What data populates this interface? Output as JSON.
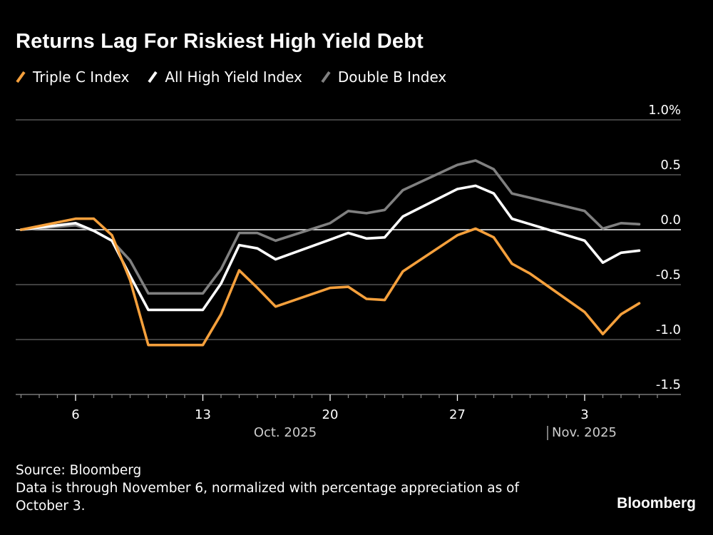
{
  "title": "Returns Lag For Riskiest High Yield Debt",
  "legend": [
    {
      "label": "Triple C Index",
      "color": "#f5a03c"
    },
    {
      "label": "All High Yield Index",
      "color": "#ffffff"
    },
    {
      "label": "Double B Index",
      "color": "#808080"
    }
  ],
  "footer": {
    "source": "Source: Bloomberg",
    "note": "Data is through November 6, normalized with percentage appreciation as of October 3."
  },
  "brand": "Bloomberg",
  "chart_data": {
    "type": "line",
    "title": "Returns Lag For Riskiest High Yield Debt",
    "xlabel": "",
    "ylabel": "",
    "y_unit": "%",
    "ylim": [
      -1.5,
      1.0
    ],
    "yticks": [
      1.0,
      0.5,
      0.0,
      -0.5,
      -1.0,
      -1.5
    ],
    "ytick_labels": [
      "1.0%",
      "0.5",
      "0.0",
      "-0.5",
      "-1.0",
      "-1.5"
    ],
    "xlim": [
      "2025-10-02",
      "2025-11-08"
    ],
    "xtick_labels": [
      {
        "date": "2025-10-06",
        "label": "6"
      },
      {
        "date": "2025-10-13",
        "label": "13"
      },
      {
        "date": "2025-10-20",
        "label": "20"
      },
      {
        "date": "2025-10-27",
        "label": "27"
      },
      {
        "date": "2025-11-03",
        "label": "3"
      }
    ],
    "month_labels": [
      {
        "label": "Oct. 2025",
        "date": "2025-10-16"
      },
      {
        "label": "Nov. 2025",
        "date": "2025-11-01"
      }
    ],
    "grid": true,
    "legend_position": "top-left",
    "x": [
      "2025-10-03",
      "2025-10-06",
      "2025-10-07",
      "2025-10-08",
      "2025-10-09",
      "2025-10-10",
      "2025-10-13",
      "2025-10-14",
      "2025-10-15",
      "2025-10-16",
      "2025-10-17",
      "2025-10-20",
      "2025-10-21",
      "2025-10-22",
      "2025-10-23",
      "2025-10-24",
      "2025-10-27",
      "2025-10-28",
      "2025-10-29",
      "2025-10-30",
      "2025-10-31",
      "2025-11-03",
      "2025-11-04",
      "2025-11-05",
      "2025-11-06"
    ],
    "series": [
      {
        "name": "Double B Index",
        "color": "#808080",
        "values": [
          0,
          0.04,
          -0.01,
          -0.1,
          -0.28,
          -0.58,
          -0.58,
          -0.36,
          -0.03,
          -0.03,
          -0.1,
          0.06,
          0.17,
          0.15,
          0.18,
          0.36,
          0.59,
          0.63,
          0.55,
          0.33,
          0.29,
          0.17,
          0.01,
          0.06,
          0.05
        ]
      },
      {
        "name": "All High Yield Index",
        "color": "#ffffff",
        "values": [
          0,
          0.06,
          -0.01,
          -0.1,
          -0.42,
          -0.73,
          -0.73,
          -0.49,
          -0.14,
          -0.17,
          -0.27,
          -0.09,
          -0.03,
          -0.08,
          -0.07,
          0.12,
          0.37,
          0.4,
          0.33,
          0.1,
          0.05,
          -0.1,
          -0.3,
          -0.21,
          -0.19
        ]
      },
      {
        "name": "Triple C Index",
        "color": "#f5a03c",
        "values": [
          0,
          0.1,
          0.1,
          -0.05,
          -0.46,
          -1.05,
          -1.05,
          -0.77,
          -0.37,
          -0.53,
          -0.7,
          -0.53,
          -0.52,
          -0.63,
          -0.64,
          -0.38,
          -0.05,
          0.01,
          -0.07,
          -0.31,
          -0.4,
          -0.75,
          -0.95,
          -0.77,
          -0.67
        ]
      }
    ]
  }
}
